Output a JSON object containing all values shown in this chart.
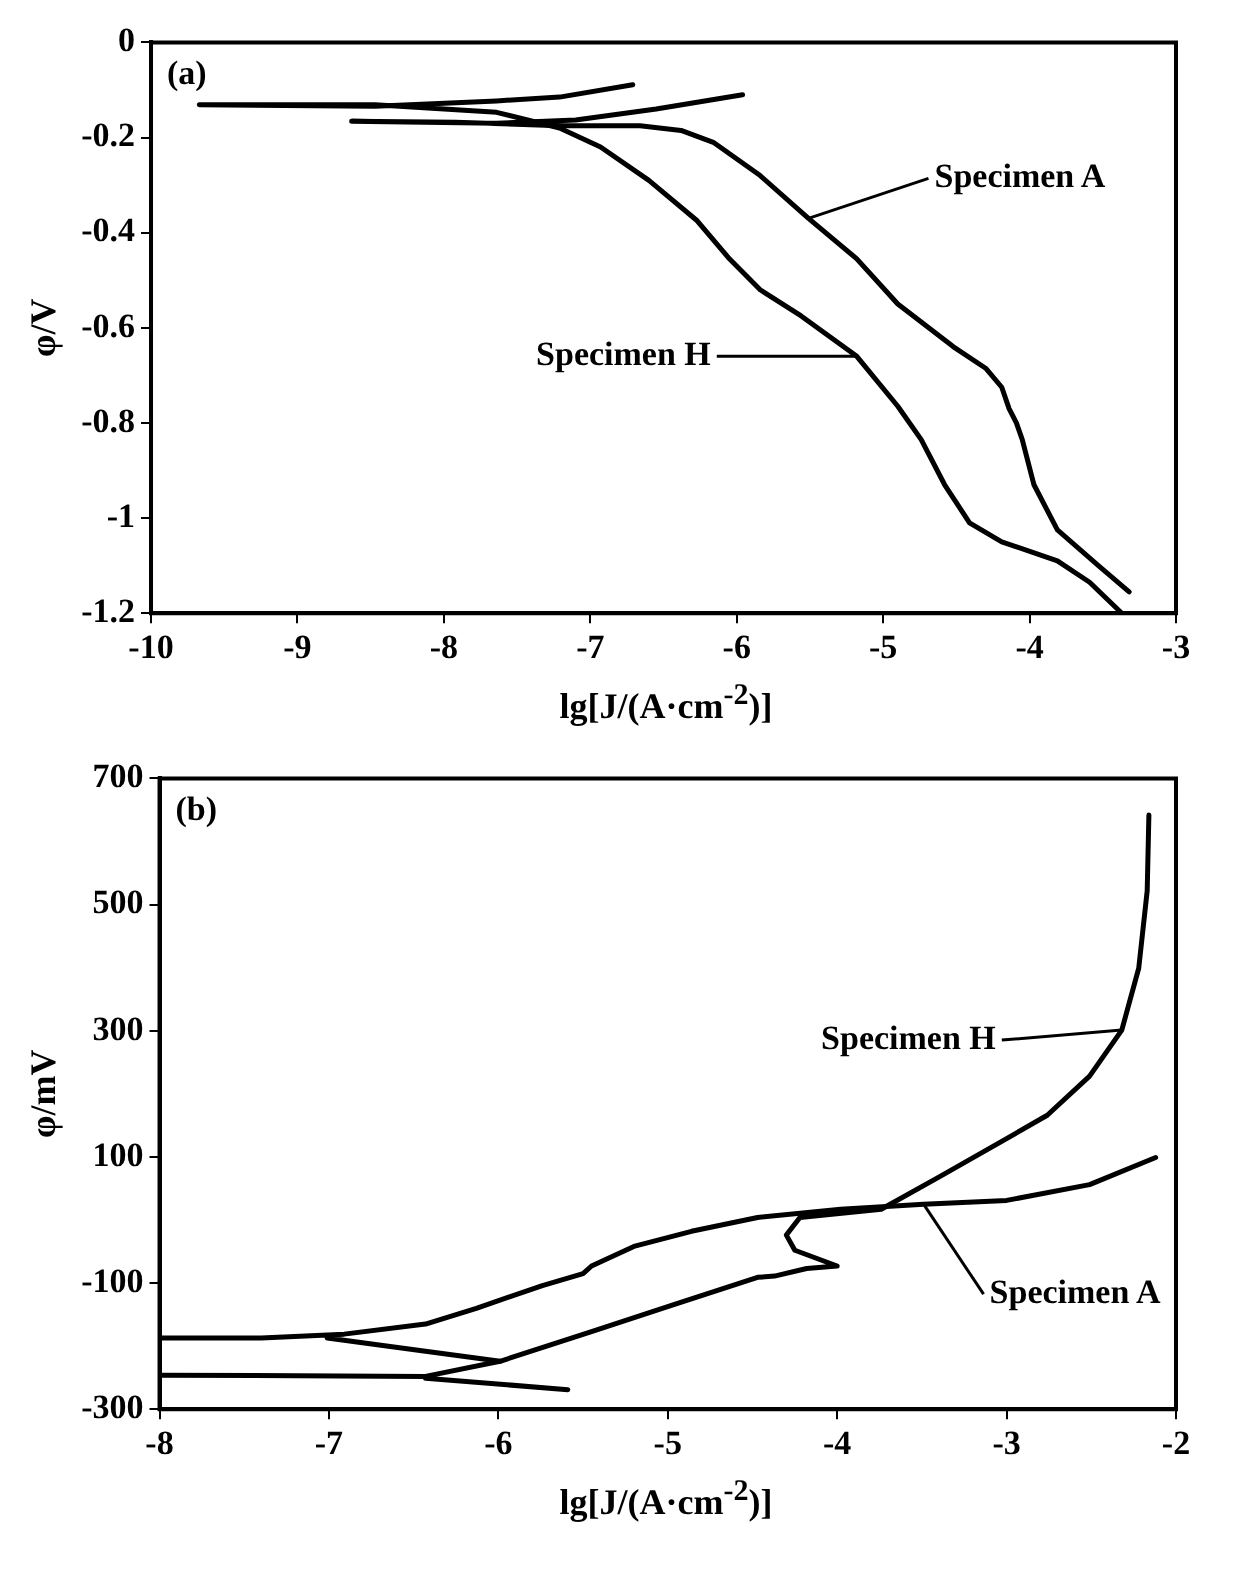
{
  "chart_data": [
    {
      "type": "line",
      "title": "(a)",
      "xlabel": "lg[J/(A·cm$^{-2}$)]",
      "ylabel": "φ/V",
      "xlim": [
        -10,
        -3
      ],
      "xticks": [
        -10,
        -9,
        -8,
        -7,
        -6,
        -5,
        -4,
        -3
      ],
      "ylim": [
        -1.2,
        0
      ],
      "yticks": [
        0,
        -0.2,
        -0.4,
        -0.6,
        -0.8,
        -1.0,
        -1.2
      ],
      "grid": false,
      "marker": "none",
      "line_style": "solid",
      "series": [
        {
          "name": "Specimen A",
          "color": "#000000",
          "x": [
            -3.32,
            -3.53,
            -3.81,
            -3.97,
            -4.05,
            -4.09,
            -4.14,
            -4.19,
            -4.3,
            -4.52,
            -4.9,
            -5.18,
            -5.51,
            -5.84,
            -6.16,
            -6.38,
            -6.66,
            -7.21,
            -7.92,
            -8.63,
            -7.64,
            -7.1,
            -6.55,
            -5.96
          ],
          "values": [
            -1.155,
            -1.1,
            -1.025,
            -0.93,
            -0.835,
            -0.8,
            -0.77,
            -0.725,
            -0.685,
            -0.64,
            -0.55,
            -0.455,
            -0.37,
            -0.28,
            -0.21,
            -0.185,
            -0.175,
            -0.175,
            -0.168,
            -0.166,
            -0.17,
            -0.163,
            -0.14,
            -0.11
          ]
        },
        {
          "name": "Specimen H",
          "color": "#000000",
          "x": [
            -3.37,
            -3.59,
            -3.81,
            -4.19,
            -4.41,
            -4.58,
            -4.74,
            -4.9,
            -5.18,
            -5.56,
            -5.84,
            -6.05,
            -6.27,
            -6.6,
            -6.93,
            -7.21,
            -7.64,
            -8.47,
            -9.67,
            -8.47,
            -7.64,
            -7.21,
            -6.71
          ],
          "values": [
            -1.2,
            -1.135,
            -1.09,
            -1.05,
            -1.01,
            -0.93,
            -0.835,
            -0.765,
            -0.66,
            -0.575,
            -0.52,
            -0.455,
            -0.375,
            -0.29,
            -0.22,
            -0.18,
            -0.147,
            -0.131,
            -0.131,
            -0.134,
            -0.123,
            -0.115,
            -0.089
          ]
        }
      ]
    },
    {
      "type": "line",
      "title": "(b)",
      "xlabel": "lg[J/(A·cm$^{-2}$)]",
      "ylabel": "φ/mV",
      "xlim": [
        -8,
        -2
      ],
      "xticks": [
        -8,
        -7,
        -6,
        -5,
        -4,
        -3,
        -2
      ],
      "ylim": [
        -300,
        700
      ],
      "yticks": [
        -300,
        -100,
        100,
        300,
        500,
        700
      ],
      "grid": false,
      "marker": "none",
      "line_style": "solid",
      "series": [
        {
          "name": "Specimen A",
          "color": "#000000",
          "x": [
            -8,
            -7.4,
            -6.91,
            -6.43,
            -6.13,
            -5.74,
            -5.5,
            -5.45,
            -5.2,
            -4.86,
            -4.47,
            -3.98,
            -3.49,
            -3.0,
            -2.51,
            -2.12,
            null,
            -7.01,
            -6.43,
            -5.99
          ],
          "values": [
            -187,
            -187,
            -181,
            -165,
            -140,
            -104,
            -85,
            -73,
            -42,
            -18,
            4,
            17,
            25,
            31,
            56,
            99,
            null,
            -187,
            -208,
            -224
          ]
        },
        {
          "name": "Specimen H",
          "color": "#000000",
          "x": [
            -8,
            -6.43,
            -5.99,
            -5.45,
            -4.96,
            -4.47,
            -4.37,
            -4.18,
            -4.0,
            -4.25,
            -4.3,
            -4.22,
            -3.74,
            -3.4,
            -3.0,
            -2.76,
            -2.51,
            -2.32,
            -2.22,
            -2.17,
            -2.16,
            null,
            -6.43,
            -5.59
          ],
          "values": [
            -246,
            -248,
            -224,
            -177,
            -134,
            -91,
            -89,
            -77,
            -73,
            -48,
            -24,
            4,
            17,
            68,
            129,
            166,
            228,
            301,
            399,
            522,
            642,
            null,
            -251,
            -269
          ]
        }
      ]
    }
  ]
}
